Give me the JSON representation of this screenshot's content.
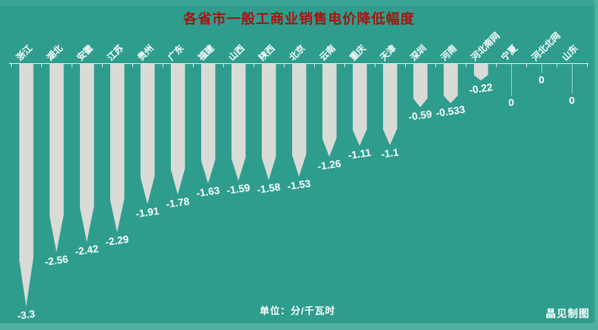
{
  "header": {
    "title": "各省市一般工商业销售电价降低幅度",
    "title_color": "#a8130e"
  },
  "footer": {
    "unit_label": "单位：分/千瓦时",
    "credit": "晶见制图"
  },
  "chart_data": {
    "type": "bar",
    "title": "各省市一般工商业销售电价降低幅度",
    "orientation": "vertical-downward",
    "categories": [
      "浙江",
      "湖北",
      "安徽",
      "江苏",
      "贵州",
      "广东",
      "福建",
      "山西",
      "陕西",
      "北京",
      "云南",
      "重庆",
      "天津",
      "深圳",
      "河南",
      "河北南网",
      "宁夏",
      "河北北网",
      "山东"
    ],
    "values": [
      -3.3,
      -2.56,
      -2.42,
      -2.29,
      -1.91,
      -1.78,
      -1.63,
      -1.59,
      -1.58,
      -1.53,
      -1.26,
      -1.11,
      -1.1,
      -0.59,
      -0.533,
      -0.22,
      0,
      0,
      0
    ],
    "value_labels": [
      "-3.3",
      "-2.56",
      "-2.42",
      "-2.29",
      "-1.91",
      "-1.78",
      "-1.63",
      "-1.59",
      "-1.58",
      "-1.53",
      "-1.26",
      "-1.11",
      "-1.1",
      "-0.59",
      "-0.533",
      "-0.22",
      "0",
      "0",
      "0"
    ],
    "unit": "分/千瓦时",
    "ylim": [
      -3.5,
      0
    ],
    "grid": false,
    "legend": false,
    "bar_color": "#d9dbd6",
    "background_color": "#2e9d8e",
    "label_color": "#ffffff",
    "zero_line_lengths": {
      "宁夏": 46,
      "河北北网": 13,
      "山东": 43
    }
  }
}
